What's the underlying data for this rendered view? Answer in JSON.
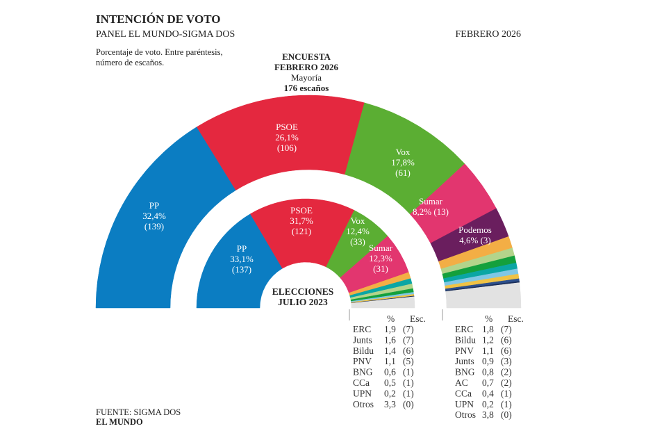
{
  "header": {
    "title": "INTENCIÓN DE VOTO",
    "subtitle": "PANEL EL MUNDO-SIGMA DOS",
    "date": "FEBRERO 2026",
    "note1": "Porcentaje de voto. Entre paréntesis,",
    "note2": "número de escaños."
  },
  "survey_label": {
    "line1": "ENCUESTA",
    "line2": "FEBRERO 2026",
    "majority": "Mayoría",
    "majority_seats": "176 escaños"
  },
  "election_label": {
    "line1": "ELECCIONES",
    "line2": "JULIO 2023"
  },
  "footer": {
    "source": "FUENTE: SIGMA DOS",
    "brand": "EL MUNDO"
  },
  "table_header": {
    "pct": "%",
    "seats": "Esc."
  },
  "chart_data": [
    {
      "type": "pie",
      "name": "Encuesta febrero 2026",
      "shape": "half-donut",
      "parties": [
        {
          "name": "PP",
          "pct": 32.4,
          "seats": 139,
          "pct_label": "32,4%",
          "seats_label": "(139)",
          "color": "#0b7dc2"
        },
        {
          "name": "PSOE",
          "pct": 26.1,
          "seats": 106,
          "pct_label": "26,1%",
          "seats_label": "(106)",
          "color": "#e4283f"
        },
        {
          "name": "Vox",
          "pct": 17.8,
          "seats": 61,
          "pct_label": "17,8%",
          "seats_label": "(61)",
          "color": "#5bae33"
        },
        {
          "name": "Sumar",
          "pct": 8.2,
          "seats": 13,
          "pct_label": "8,2% (13)",
          "seats_label": "",
          "color": "#e2366f"
        },
        {
          "name": "Podemos",
          "pct": 4.6,
          "seats": 3,
          "pct_label": "4,6% (3)",
          "seats_label": "",
          "color": "#6a1e5e"
        },
        {
          "name": "ERC",
          "pct": 1.8,
          "seats": 7,
          "pct_label": "1,8",
          "seats_label": "(7)",
          "color": "#f3ae45"
        },
        {
          "name": "Bildu",
          "pct": 1.2,
          "seats": 6,
          "pct_label": "1,2",
          "seats_label": "(6)",
          "color": "#b3d48b"
        },
        {
          "name": "PNV",
          "pct": 1.1,
          "seats": 6,
          "pct_label": "1,1",
          "seats_label": "(6)",
          "color": "#14a03c"
        },
        {
          "name": "Junts",
          "pct": 0.9,
          "seats": 3,
          "pct_label": "0,9",
          "seats_label": "(3)",
          "color": "#0ba6a4"
        },
        {
          "name": "BNG",
          "pct": 0.8,
          "seats": 2,
          "pct_label": "0,8",
          "seats_label": "(2)",
          "color": "#80c7e4"
        },
        {
          "name": "AC",
          "pct": 0.7,
          "seats": 2,
          "pct_label": "0,7",
          "seats_label": "(2)",
          "color": "#f0c244"
        },
        {
          "name": "CCa",
          "pct": 0.4,
          "seats": 1,
          "pct_label": "0,4",
          "seats_label": "(1)",
          "color": "#2c4f8c"
        },
        {
          "name": "UPN",
          "pct": 0.2,
          "seats": 1,
          "pct_label": "0,2",
          "seats_label": "(1)",
          "color": "#1a2e5a"
        },
        {
          "name": "Otros",
          "pct": 3.8,
          "seats": 0,
          "pct_label": "3,8",
          "seats_label": "(0)",
          "color": "#e2e2e2"
        }
      ]
    },
    {
      "type": "pie",
      "name": "Elecciones julio 2023",
      "shape": "half-donut",
      "parties": [
        {
          "name": "PP",
          "pct": 33.1,
          "seats": 137,
          "pct_label": "33,1%",
          "seats_label": "(137)",
          "color": "#0b7dc2"
        },
        {
          "name": "PSOE",
          "pct": 31.7,
          "seats": 121,
          "pct_label": "31,7%",
          "seats_label": "(121)",
          "color": "#e4283f"
        },
        {
          "name": "Vox",
          "pct": 12.4,
          "seats": 33,
          "pct_label": "12,4%",
          "seats_label": "(33)",
          "color": "#5bae33"
        },
        {
          "name": "Sumar",
          "pct": 12.3,
          "seats": 31,
          "pct_label": "12,3%",
          "seats_label": "(31)",
          "color": "#e2366f"
        },
        {
          "name": "ERC",
          "pct": 1.9,
          "seats": 7,
          "pct_label": "1,9",
          "seats_label": "(7)",
          "color": "#f3ae45"
        },
        {
          "name": "Junts",
          "pct": 1.6,
          "seats": 7,
          "pct_label": "1,6",
          "seats_label": "(7)",
          "color": "#0ba6a4"
        },
        {
          "name": "Bildu",
          "pct": 1.4,
          "seats": 6,
          "pct_label": "1,4",
          "seats_label": "(6)",
          "color": "#b3d48b"
        },
        {
          "name": "PNV",
          "pct": 1.1,
          "seats": 5,
          "pct_label": "1,1",
          "seats_label": "(5)",
          "color": "#14a03c"
        },
        {
          "name": "BNG",
          "pct": 0.6,
          "seats": 1,
          "pct_label": "0,6",
          "seats_label": "(1)",
          "color": "#80c7e4"
        },
        {
          "name": "CCa",
          "pct": 0.5,
          "seats": 1,
          "pct_label": "0,5",
          "seats_label": "(1)",
          "color": "#f0c244"
        },
        {
          "name": "UPN",
          "pct": 0.2,
          "seats": 1,
          "pct_label": "0,2",
          "seats_label": "(1)",
          "color": "#1a2e5a"
        },
        {
          "name": "Otros",
          "pct": 3.3,
          "seats": 0,
          "pct_label": "3,3",
          "seats_label": "(0)",
          "color": "#e2e2e2"
        }
      ]
    }
  ]
}
